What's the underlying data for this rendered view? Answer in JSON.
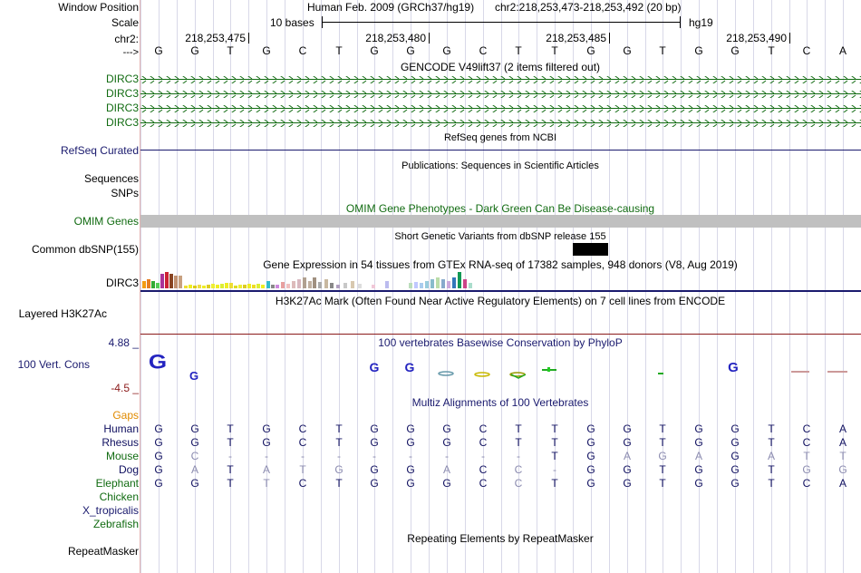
{
  "labels": {
    "window_position": "Window Position",
    "scale": "Scale",
    "chr": "chr2:",
    "strand": "--->",
    "dirc3": "DIRC3",
    "refseq": "RefSeq Curated",
    "sequences": "Sequences",
    "snps": "SNPs",
    "omim": "OMIM Genes",
    "common_dbsnp": "Common dbSNP(155)",
    "gtex_gene": "DIRC3",
    "layered": "Layered H3K27Ac",
    "cons_max": "4.88 _",
    "cons_label": "100 Vert. Cons",
    "cons_min": "-4.5 _",
    "gaps": "Gaps",
    "chicken": "Chicken",
    "xtrop": "X_tropicalis",
    "zebrafish": "Zebrafish",
    "repeatmasker": "RepeatMasker"
  },
  "header": {
    "assembly": "Human Feb. 2009 (GRCh37/hg19)",
    "position": "chr2:218,253,473-218,253,492 (20 bp)",
    "scale_text": "10 bases",
    "scale_db": "hg19",
    "coords": [
      "218,253,475",
      "218,253,480",
      "218,253,485",
      "218,253,490"
    ]
  },
  "sequence": [
    "G",
    "G",
    "T",
    "G",
    "C",
    "T",
    "G",
    "G",
    "G",
    "C",
    "T",
    "T",
    "G",
    "G",
    "T",
    "G",
    "G",
    "T",
    "C",
    "A"
  ],
  "track_titles": {
    "gencode": "GENCODE V49lift37 (2 items filtered out)",
    "refseq": "RefSeq genes from NCBI",
    "publications": "Publications: Sequences in Scientific Articles",
    "omim": "OMIM Gene Phenotypes - Dark Green Can Be Disease-causing",
    "dbsnp": "Short Genetic Variants from dbSNP release 155",
    "gtex": "Gene Expression in 54 tissues from GTEx RNA-seq of 17382 samples, 948 donors (V8, Aug 2019)",
    "h3k27ac": "H3K27Ac Mark (Often Found Near Active Regulatory Elements) on 7 cell lines from ENCODE",
    "phylop": "100 vertebrates Basewise Conservation by PhyloP",
    "multiz": "Multiz Alignments of 100 Vertebrates",
    "repeatmasker": "Repeating Elements by RepeatMasker"
  },
  "alignment": [
    {
      "species": "Human",
      "bases": [
        "G",
        "G",
        "T",
        "G",
        "C",
        "T",
        "G",
        "G",
        "G",
        "C",
        "T",
        "T",
        "G",
        "G",
        "T",
        "G",
        "G",
        "T",
        "C",
        "A"
      ]
    },
    {
      "species": "Rhesus",
      "bases": [
        "G",
        "G",
        "T",
        "G",
        "C",
        "T",
        "G",
        "G",
        "G",
        "C",
        "T",
        "T",
        "G",
        "G",
        "T",
        "G",
        "G",
        "T",
        "C",
        "A"
      ]
    },
    {
      "species": "Mouse",
      "bases": [
        "G",
        "C",
        "-",
        "-",
        "-",
        "-",
        "-",
        "-",
        "-",
        "-",
        "-",
        "T",
        "G",
        "A",
        "G",
        "A",
        "G",
        "A",
        "T",
        "T"
      ]
    },
    {
      "species": "Dog",
      "bases": [
        "G",
        "A",
        "T",
        "A",
        "T",
        "G",
        "G",
        "G",
        "A",
        "C",
        "C",
        "-",
        "G",
        "G",
        "T",
        "G",
        "G",
        "T",
        "G",
        "G"
      ]
    },
    {
      "species": "Elephant",
      "bases": [
        "G",
        "G",
        "T",
        "T",
        "C",
        "T",
        "G",
        "G",
        "G",
        "C",
        "C",
        "T",
        "G",
        "G",
        "T",
        "G",
        "G",
        "T",
        "C",
        "A"
      ]
    }
  ],
  "phylop_letters": [
    "G",
    "G",
    "",
    "",
    "",
    "",
    "G",
    "G",
    "",
    "",
    "",
    "",
    "",
    "",
    "",
    "",
    "G",
    "",
    "",
    ""
  ],
  "colors": {
    "gene_green": "#116b11",
    "refseq_blue": "#1a1a6e",
    "cons_blue": "#2424c0",
    "gaps_orange": "#e08a00",
    "alignment_navy": "#101060",
    "mismatch_gray": "#8c8cb0"
  }
}
